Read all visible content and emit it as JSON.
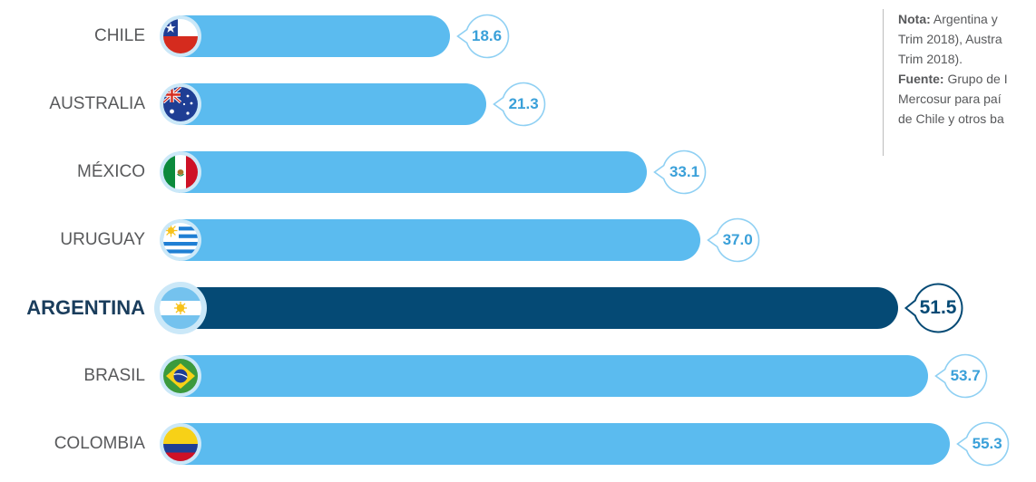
{
  "chart_data": {
    "type": "bar",
    "orientation": "horizontal",
    "categories": [
      "CHILE",
      "AUSTRALIA",
      "MÉXICO",
      "URUGUAY",
      "ARGENTINA",
      "BRASIL",
      "COLOMBIA"
    ],
    "values": [
      18.6,
      21.3,
      33.1,
      37.0,
      51.5,
      53.7,
      55.3
    ],
    "value_labels": [
      "18.6",
      "21.3",
      "33.1",
      "37.0",
      "51.5",
      "53.7",
      "55.3"
    ],
    "highlighted": "ARGENTINA",
    "flag_icons": [
      "chile-flag-icon",
      "australia-flag-icon",
      "mexico-flag-icon",
      "uruguay-flag-icon",
      "argentina-flag-icon",
      "brazil-flag-icon",
      "colombia-flag-icon"
    ],
    "colors": {
      "bar": "#5bbbef",
      "highlight_bar": "#054a75",
      "bubble_border": "#8fd0f3",
      "value_text": "#3aa0d9"
    },
    "title": "",
    "xlabel": "",
    "ylabel": ""
  },
  "note": {
    "nota_label": "Nota:",
    "nota_line1": "Argentina y",
    "nota_line2": "Trim 2018), Austra",
    "nota_line3": "Trim 2018).",
    "fuente_label": "Fuente:",
    "fuente_line1": "Grupo de I",
    "fuente_line2": "Mercosur para paí",
    "fuente_line3": "de Chile y otros ba"
  }
}
